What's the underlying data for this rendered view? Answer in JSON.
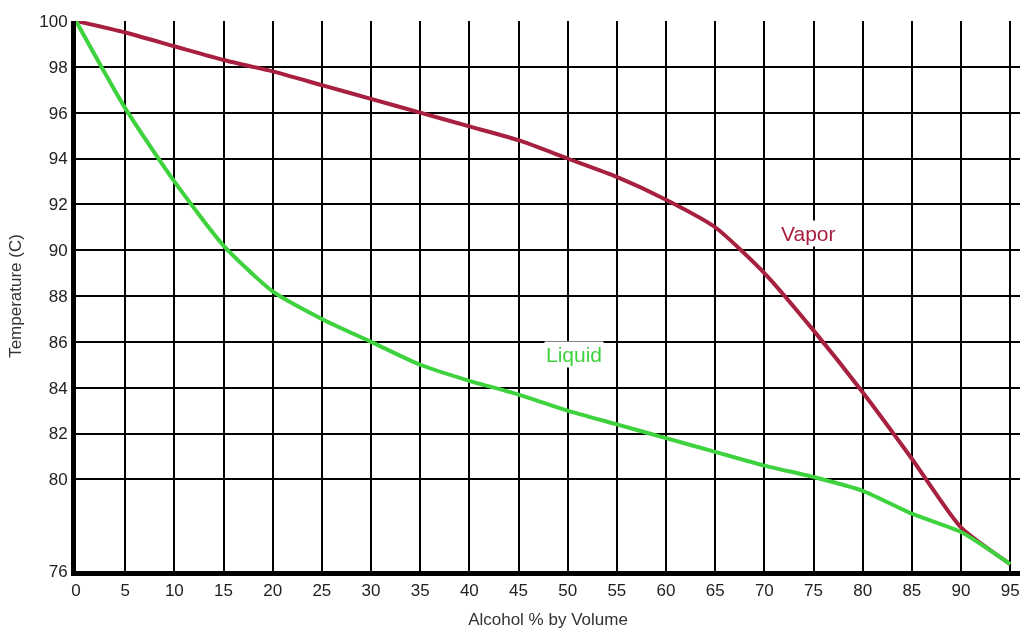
{
  "chart_data": {
    "type": "line",
    "xlabel": "Alcohol % by Volume",
    "ylabel": "Temperature (C)",
    "x": [
      0,
      5,
      10,
      15,
      20,
      25,
      30,
      35,
      40,
      45,
      50,
      55,
      60,
      65,
      70,
      75,
      80,
      85,
      90,
      95
    ],
    "series": [
      {
        "name": "Vapor",
        "color": "#a8203f",
        "values": [
          100,
          99.5,
          98.9,
          98.3,
          97.8,
          97.2,
          96.6,
          96.0,
          95.4,
          94.8,
          94.0,
          93.2,
          92.2,
          91.0,
          89.0,
          86.5,
          83.8,
          80.9,
          77.9,
          76.3
        ]
      },
      {
        "name": "Liquid",
        "color": "#3fd23f",
        "values": [
          100,
          96.2,
          93.0,
          90.2,
          88.2,
          87.0,
          86.0,
          85.0,
          84.3,
          83.7,
          83.0,
          82.4,
          81.8,
          81.2,
          80.6,
          80.1,
          79.5,
          78.5,
          77.7,
          76.3
        ]
      }
    ],
    "xlim": [
      0,
      96
    ],
    "xticks": [
      0,
      5,
      10,
      15,
      20,
      25,
      30,
      35,
      40,
      45,
      50,
      55,
      60,
      65,
      70,
      75,
      80,
      85,
      90,
      95
    ],
    "ylim": [
      76,
      100
    ],
    "yticks": [
      76,
      80,
      82,
      84,
      86,
      88,
      90,
      92,
      94,
      96,
      98,
      100
    ],
    "grid": true,
    "legend": false,
    "marker": "none",
    "line_style": "solid"
  }
}
